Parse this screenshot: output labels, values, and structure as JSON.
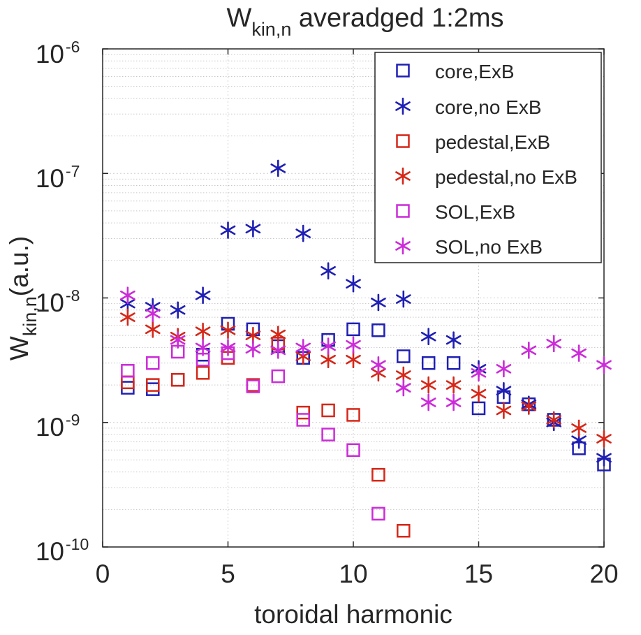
{
  "chart_data": {
    "type": "scatter",
    "title": {
      "main": "W",
      "sub": "kin,n",
      "rest": " averadged 1:2ms"
    },
    "xlabel": "toroidal harmonic",
    "ylabel": {
      "main": "W",
      "sub": "kin,n",
      "rest": "(a.u.)"
    },
    "xlim": [
      0,
      20
    ],
    "ylim": [
      1e-10,
      1e-06
    ],
    "yscale": "log",
    "xticks": [
      "0",
      "5",
      "10",
      "15",
      "20"
    ],
    "yticks": [
      {
        "base": "10",
        "exp": "-10"
      },
      {
        "base": "10",
        "exp": "-9"
      },
      {
        "base": "10",
        "exp": "-8"
      },
      {
        "base": "10",
        "exp": "-7"
      },
      {
        "base": "10",
        "exp": "-6"
      }
    ],
    "grid": true,
    "minor_grid": true,
    "legend_position": "top-right",
    "series": [
      {
        "name": "core,ExB",
        "marker": "square",
        "color": "#1f1fb4",
        "x": [
          1,
          2,
          3,
          4,
          5,
          6,
          7,
          8,
          9,
          10,
          11,
          12,
          13,
          14,
          15,
          16,
          17,
          18,
          19,
          20
        ],
        "y": [
          1.9e-09,
          1.85e-09,
          2.2e-09,
          3.5e-09,
          6.2e-09,
          5.6e-09,
          4.1e-09,
          3.3e-09,
          4.6e-09,
          5.6e-09,
          5.5e-09,
          3.4e-09,
          3e-09,
          3e-09,
          1.3e-09,
          1.6e-09,
          1.4e-09,
          1.05e-09,
          6.2e-10,
          4.6e-10
        ]
      },
      {
        "name": "core,no ExB",
        "marker": "star",
        "color": "#1f1fb4",
        "x": [
          1,
          2,
          3,
          4,
          5,
          6,
          7,
          8,
          9,
          10,
          11,
          12,
          13,
          14,
          15,
          16,
          17,
          18,
          19,
          20
        ],
        "y": [
          9e-09,
          8.5e-09,
          8e-09,
          1.05e-08,
          3.5e-08,
          3.6e-08,
          1.1e-07,
          3.3e-08,
          1.65e-08,
          1.3e-08,
          9.2e-09,
          9.8e-09,
          4.9e-09,
          4.6e-09,
          2.7e-09,
          1.8e-09,
          1.4e-09,
          1e-09,
          7.2e-10,
          5.2e-10
        ]
      },
      {
        "name": "pedestal,ExB",
        "marker": "square",
        "color": "#d62718",
        "x": [
          1,
          2,
          3,
          4,
          5,
          6,
          7,
          8,
          9,
          10,
          11,
          12
        ],
        "y": [
          2.1e-09,
          2e-09,
          2.2e-09,
          2.5e-09,
          3.3e-09,
          2e-09,
          4.3e-09,
          1.2e-09,
          1.25e-09,
          1.15e-09,
          3.8e-10,
          1.35e-10
        ]
      },
      {
        "name": "pedestal,no ExB",
        "marker": "star",
        "color": "#d62718",
        "x": [
          1,
          2,
          3,
          4,
          5,
          6,
          7,
          8,
          9,
          10,
          11,
          12,
          13,
          14,
          15,
          16,
          17,
          18,
          19,
          20
        ],
        "y": [
          7e-09,
          5.6e-09,
          4.9e-09,
          5.4e-09,
          5.5e-09,
          5e-09,
          5.1e-09,
          3.4e-09,
          3.2e-09,
          3.2e-09,
          2.5e-09,
          2.4e-09,
          2e-09,
          2e-09,
          1.7e-09,
          1.25e-09,
          1.35e-09,
          1.05e-09,
          9e-10,
          7.4e-10
        ]
      },
      {
        "name": "SOL,ExB",
        "marker": "square",
        "color": "#cc2bd9",
        "x": [
          1,
          2,
          3,
          4,
          5,
          6,
          7,
          8,
          9,
          10,
          11
        ],
        "y": [
          2.6e-09,
          3e-09,
          3.7e-09,
          3.2e-09,
          3.6e-09,
          1.95e-09,
          2.35e-09,
          1.05e-09,
          8e-10,
          6e-10,
          1.85e-10
        ]
      },
      {
        "name": "SOL,no ExB",
        "marker": "star",
        "color": "#cc2bd9",
        "x": [
          1,
          2,
          3,
          4,
          5,
          6,
          7,
          8,
          9,
          10,
          11,
          12,
          13,
          14,
          15,
          16,
          17,
          18,
          19,
          20
        ],
        "y": [
          1.05e-08,
          7.5e-09,
          4.6e-09,
          4e-09,
          4e-09,
          3.9e-09,
          3.8e-09,
          4e-09,
          4.1e-09,
          4.2e-09,
          2.9e-09,
          1.9e-09,
          1.45e-09,
          1.45e-09,
          2.5e-09,
          2.7e-09,
          3.8e-09,
          4.3e-09,
          3.6e-09,
          2.9e-09
        ]
      }
    ]
  }
}
